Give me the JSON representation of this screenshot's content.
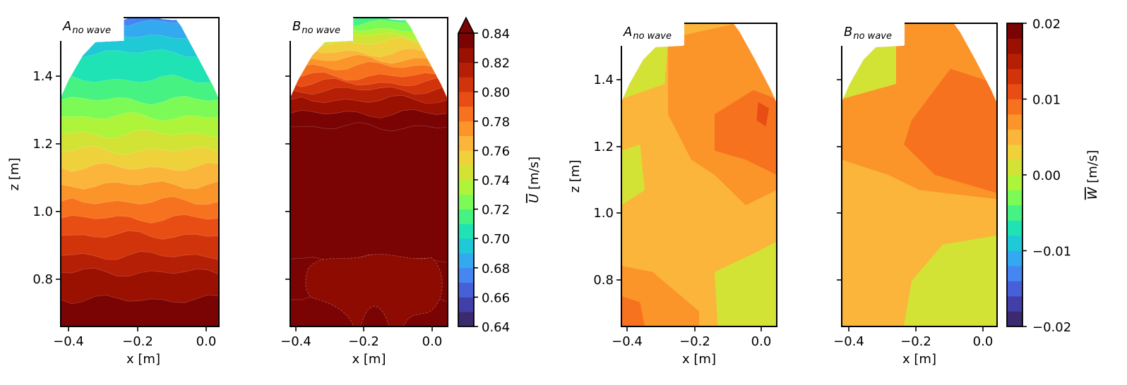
{
  "chart_data": [
    {
      "type": "contour",
      "panel": "A-U",
      "title": "A",
      "title_subscript": "no wave",
      "xlabel": "x [m]",
      "ylabel": "z [m]",
      "xticks": [
        -0.4,
        -0.2,
        0.0
      ],
      "xtick_labels": [
        "−0.4",
        "−0.2",
        "0.0"
      ],
      "yticks": [
        0.8,
        1.0,
        1.2,
        1.4
      ],
      "ytick_labels": [
        "0.8",
        "1.0",
        "1.2",
        "1.4"
      ],
      "xlim": [
        -0.42,
        0.045
      ],
      "ylim": [
        0.66,
        1.57
      ],
      "colorbar": "U",
      "bands_bottom_to_top": [
        0.835,
        0.825,
        0.815,
        0.805,
        0.795,
        0.785,
        0.775,
        0.765,
        0.755,
        0.745,
        0.735,
        0.725,
        0.715,
        0.705,
        0.695,
        0.685,
        0.675
      ],
      "band_tops_z": [
        0.74,
        0.82,
        0.87,
        0.93,
        0.98,
        1.03,
        1.08,
        1.13,
        1.18,
        1.23,
        1.28,
        1.33,
        1.39,
        1.47,
        1.52,
        1.56,
        1.57
      ]
    },
    {
      "type": "contour",
      "panel": "B-U",
      "title": "B",
      "title_subscript": "no wave",
      "xlabel": "x [m]",
      "ylabel": "",
      "xticks": [
        -0.4,
        -0.2,
        0.0
      ],
      "xtick_labels": [
        "−0.4",
        "−0.2",
        "0.0"
      ],
      "yticks": [
        0.8,
        1.0,
        1.2,
        1.4
      ],
      "xlim": [
        -0.42,
        0.045
      ],
      "ylim": [
        0.66,
        1.57
      ],
      "colorbar": "U",
      "bands_bottom_to_top": [
        0.845,
        0.835,
        0.845,
        0.835,
        0.825,
        0.815,
        0.805,
        0.795,
        0.785,
        0.775,
        0.765,
        0.755,
        0.745,
        0.735,
        0.725,
        0.715
      ],
      "band_tops_z": [
        0.74,
        0.86,
        1.25,
        1.29,
        1.33,
        1.36,
        1.38,
        1.4,
        1.43,
        1.45,
        1.47,
        1.5,
        1.52,
        1.54,
        1.56,
        1.57
      ]
    },
    {
      "type": "contour",
      "panel": "A-W",
      "title": "A",
      "title_subscript": "no wave",
      "xlabel": "x [m]",
      "ylabel": "z [m]",
      "xticks": [
        -0.4,
        -0.2,
        0.0
      ],
      "xtick_labels": [
        "−0.4",
        "−0.2",
        "0.0"
      ],
      "yticks": [
        0.8,
        1.0,
        1.2,
        1.4
      ],
      "ytick_labels": [
        "0.8",
        "1.0",
        "1.2",
        "1.4"
      ],
      "xlim": [
        -0.42,
        0.045
      ],
      "ylim": [
        0.66,
        1.55
      ],
      "colorbar": "W",
      "dominant_values": [
        0.004,
        0.006,
        0.008,
        0.002
      ]
    },
    {
      "type": "contour",
      "panel": "B-W",
      "title": "B",
      "title_subscript": "no wave",
      "xlabel": "x [m]",
      "ylabel": "",
      "xticks": [
        -0.4,
        -0.2,
        0.0
      ],
      "xtick_labels": [
        "−0.4",
        "−0.2",
        "0.0"
      ],
      "yticks": [
        0.8,
        1.0,
        1.2,
        1.4
      ],
      "xlim": [
        -0.42,
        0.045
      ],
      "ylim": [
        0.66,
        1.55
      ],
      "colorbar": "W",
      "dominant_values": [
        0.008,
        0.006,
        0.004,
        0.002,
        0.0
      ]
    }
  ],
  "colorbars": {
    "U": {
      "label": "U [m/s]",
      "label_symbol": "U",
      "label_unit": " [m/s]",
      "range": [
        0.64,
        0.84
      ],
      "levels": 20,
      "extend": "max",
      "ticks": [
        0.64,
        0.66,
        0.68,
        0.7,
        0.72,
        0.74,
        0.76,
        0.78,
        0.8,
        0.82,
        0.84
      ],
      "tick_labels": [
        "0.64",
        "0.66",
        "0.68",
        "0.70",
        "0.72",
        "0.74",
        "0.76",
        "0.78",
        "0.80",
        "0.82",
        "0.84"
      ]
    },
    "W": {
      "label": "W [m/s]",
      "label_symbol": "W",
      "label_unit": " [m/s]",
      "range": [
        -0.02,
        0.02
      ],
      "levels": 20,
      "extend": "neither",
      "ticks": [
        -0.02,
        -0.01,
        0.0,
        0.01,
        0.02
      ],
      "tick_labels": [
        "−0.02",
        "−0.01",
        "0.00",
        "0.01",
        "0.02"
      ]
    }
  },
  "colormap": [
    "#3b2a6e",
    "#433fa8",
    "#4760d8",
    "#4586f2",
    "#33a9f0",
    "#1fcad6",
    "#1fe2b5",
    "#45f282",
    "#7cfb57",
    "#aef43a",
    "#d3e336",
    "#eed13b",
    "#fbb53a",
    "#fb9429",
    "#f7721f",
    "#e84e14",
    "#d1330a",
    "#b51f05",
    "#9a1001",
    "#7a0403"
  ],
  "extend_color": "#7a0403"
}
